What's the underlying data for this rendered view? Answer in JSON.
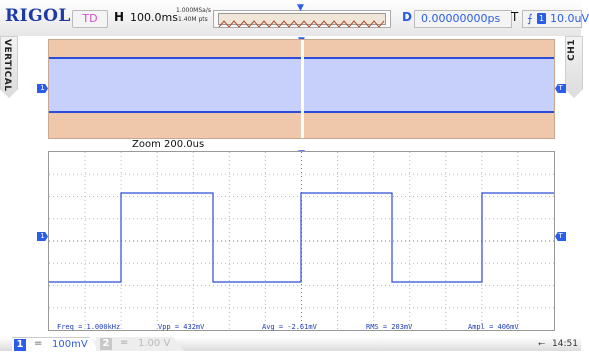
{
  "topbar": {
    "brand": "RIGOL",
    "trigger_status": "TD",
    "h_label": "H",
    "timebase": "100.0ms",
    "sample_rate": "1.000MSa/s",
    "memory_depth": "1.40M pts",
    "d_label": "D",
    "delay": "0.00000000ps",
    "t_label": "T",
    "trigger_source": "1",
    "trigger_level": "10.0uV"
  },
  "side": {
    "left_tab": "VERTICAL",
    "right_tab": "CH1"
  },
  "zoom": {
    "label": "Zoom  200.0us"
  },
  "markers": {
    "channel": "1",
    "trigger": "T"
  },
  "measurements": {
    "freq": "Freq = 1.000kHz",
    "vpp": "Vpp = 432mV",
    "avg": "Avg = -2.61mV",
    "rms": "RMS = 203mV",
    "ampl": "Ampl = 406mV"
  },
  "bottombar": {
    "ch1_number": "1",
    "ch1_coupling": "=",
    "ch1_scale": "100mV",
    "ch2_number": "2",
    "ch2_coupling": "=",
    "ch2_scale": "1.00 V",
    "time": "14:51"
  },
  "colors": {
    "brand": "#1d3aa6",
    "ch1": "#2a5ee8",
    "trigger_status": "#d24ec8",
    "overview_bg": "#efc8ac"
  }
}
